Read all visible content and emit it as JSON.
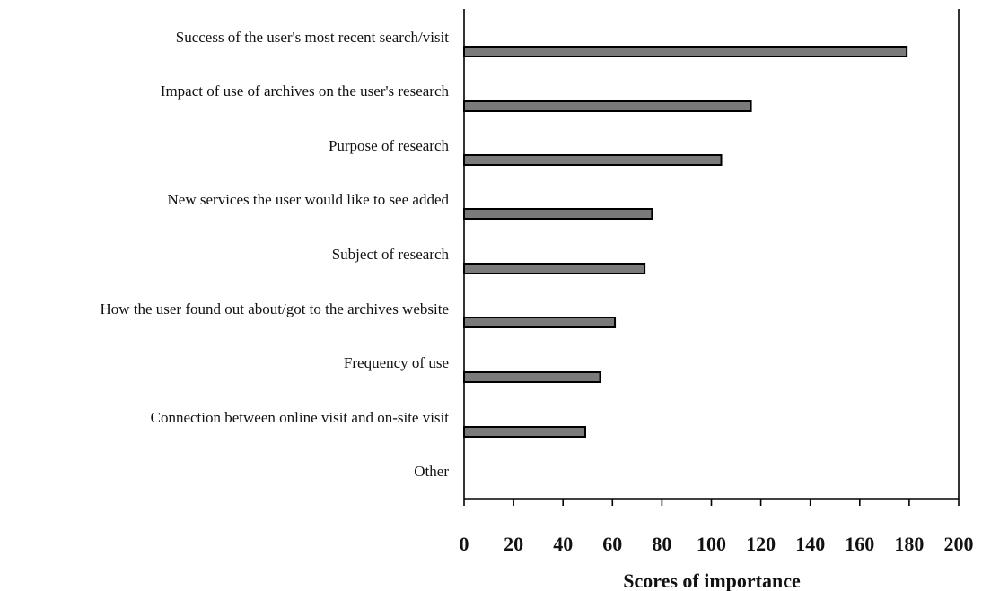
{
  "chart_data": {
    "type": "bar",
    "orientation": "horizontal",
    "categories": [
      "Success of the user's most recent search/visit",
      "Impact of use of archives on the user's research",
      "Purpose of research",
      "New services the user would like to see added",
      "Subject of research",
      "How the user found out about/got to the archives website",
      "Frequency of use",
      "Connection between online visit and on-site visit",
      "Other"
    ],
    "values": [
      179,
      116,
      104,
      76,
      73,
      61,
      55,
      49,
      0
    ],
    "xlabel": "Scores of importance",
    "ylabel": "",
    "xlim": [
      0,
      200
    ],
    "xticks": [
      "0",
      "20",
      "40",
      "60",
      "80",
      "100",
      "120",
      "140",
      "160",
      "180",
      "200"
    ],
    "grid": false,
    "legend": "none",
    "colors": {
      "bar_fill": "#7a7a7a",
      "bar_stroke": "#000000"
    }
  }
}
